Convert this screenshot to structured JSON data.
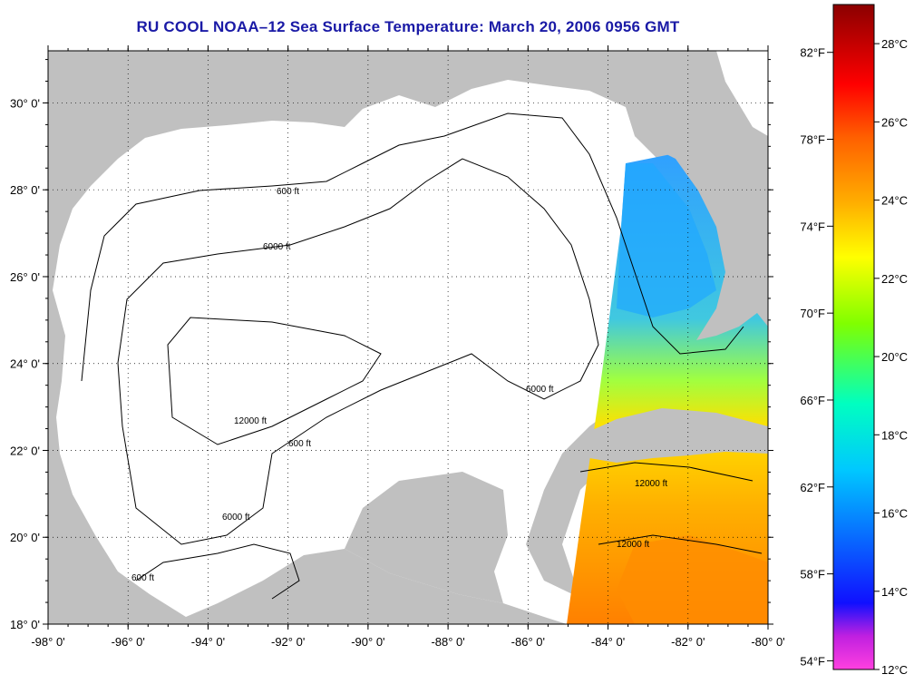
{
  "title": "RU COOL  NOAA–12  Sea Surface Temperature:  March 20, 2006 0956 GMT",
  "map": {
    "lon_min": -98,
    "lon_max": -80,
    "lat_min": 18,
    "lat_max": 31.2,
    "lon_ticks": [
      {
        "v": -98,
        "label": "-98° 0'"
      },
      {
        "v": -96,
        "label": "-96° 0'"
      },
      {
        "v": -94,
        "label": "-94° 0'"
      },
      {
        "v": -92,
        "label": "-92° 0'"
      },
      {
        "v": -90,
        "label": "-90° 0'"
      },
      {
        "v": -88,
        "label": "-88° 0'"
      },
      {
        "v": -86,
        "label": "-86° 0'"
      },
      {
        "v": -84,
        "label": "-84° 0'"
      },
      {
        "v": -82,
        "label": "-82° 0'"
      },
      {
        "v": -80,
        "label": "-80° 0'"
      }
    ],
    "lat_ticks": [
      {
        "v": 18,
        "label": "18° 0'"
      },
      {
        "v": 20,
        "label": "20° 0'"
      },
      {
        "v": 22,
        "label": "22° 0'"
      },
      {
        "v": 24,
        "label": "24° 0'"
      },
      {
        "v": 26,
        "label": "26° 0'"
      },
      {
        "v": 28,
        "label": "28° 0'"
      },
      {
        "v": 30,
        "label": "30° 0'"
      }
    ],
    "fahrenheit_labels": [
      "82°F",
      "78°F",
      "74°F",
      "70°F",
      "66°F",
      "62°F",
      "58°F",
      "54°F"
    ],
    "contour_labels": [
      "600 ft",
      "6000 ft",
      "12000 ft"
    ],
    "colors": {
      "land": "#c0c0c0",
      "ocean_no_data": "#ffffff",
      "contour": "#000000",
      "title": "#1a1aa6"
    }
  },
  "colorbar": {
    "celsius_labels": [
      "28°C",
      "26°C",
      "24°C",
      "22°C",
      "20°C",
      "18°C",
      "16°C",
      "14°C",
      "12°C"
    ],
    "celsius_min": 12,
    "celsius_max": 29,
    "stops": [
      "#ff40e0",
      "#8a2be2",
      "#0000ff",
      "#00a0ff",
      "#00ffff",
      "#00ff80",
      "#80ff00",
      "#ffff00",
      "#ffa000",
      "#ff4000",
      "#ff0000",
      "#8b0000"
    ]
  }
}
